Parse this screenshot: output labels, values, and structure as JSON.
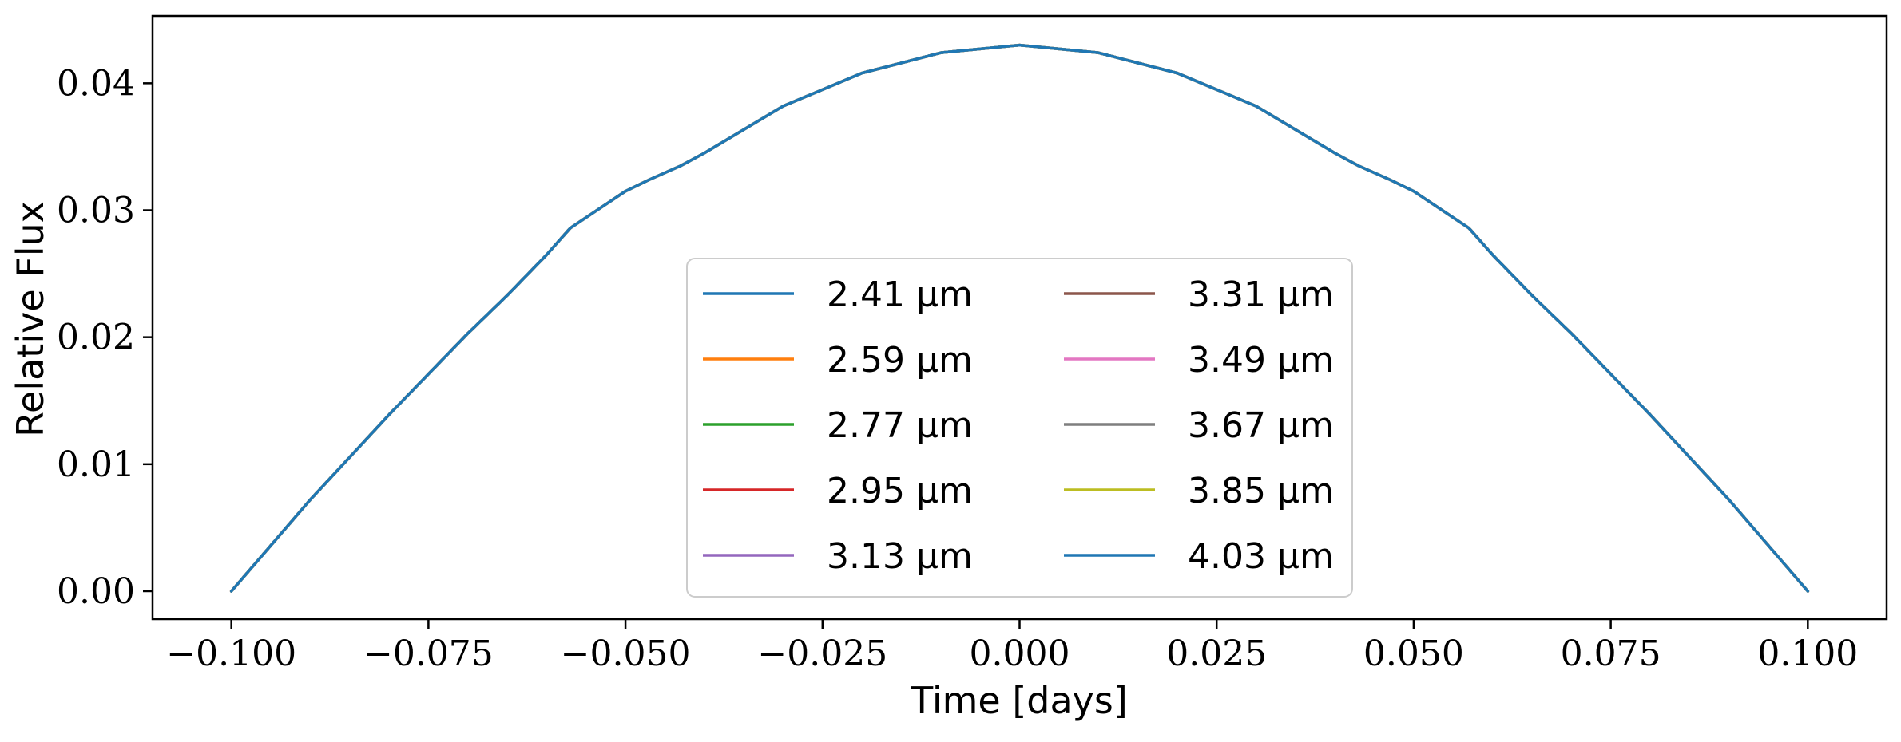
{
  "chart_data": {
    "type": "line",
    "title": "",
    "xlabel": "Time [days]",
    "ylabel": "Relative Flux",
    "xlim": [
      -0.11,
      0.11
    ],
    "ylim": [
      -0.0022,
      0.0453
    ],
    "xticks": [
      -0.1,
      -0.075,
      -0.05,
      -0.025,
      0.0,
      0.025,
      0.05,
      0.075,
      0.1
    ],
    "xtick_labels": [
      "−0.100",
      "−0.075",
      "−0.050",
      "−0.025",
      "0.000",
      "0.025",
      "0.050",
      "0.075",
      "0.100"
    ],
    "yticks": [
      0.0,
      0.01,
      0.02,
      0.03,
      0.04
    ],
    "ytick_labels": [
      "0.00",
      "0.01",
      "0.02",
      "0.03",
      "0.04"
    ],
    "grid": false,
    "legend_placement": "lower center",
    "legend_columns": 2,
    "x": [
      -0.1,
      -0.09,
      -0.08,
      -0.07,
      -0.065,
      -0.06,
      -0.057,
      -0.05,
      -0.047,
      -0.043,
      -0.04,
      -0.03,
      -0.02,
      -0.01,
      0.0,
      0.01,
      0.02,
      0.03,
      0.04,
      0.043,
      0.047,
      0.05,
      0.057,
      0.06,
      0.065,
      0.07,
      0.08,
      0.09,
      0.1
    ],
    "series": [
      {
        "name": "2.41 μm",
        "color": "#1f77b4",
        "values": [
          0.0,
          0.0072,
          0.0139,
          0.0203,
          0.0233,
          0.0265,
          0.0286,
          0.0315,
          0.0324,
          0.0335,
          0.0345,
          0.0382,
          0.0408,
          0.0424,
          0.043,
          0.0424,
          0.0408,
          0.0382,
          0.0345,
          0.0335,
          0.0324,
          0.0315,
          0.0286,
          0.0265,
          0.0233,
          0.0203,
          0.0139,
          0.0072,
          0.0
        ]
      },
      {
        "name": "2.59 μm",
        "color": "#ff7f0e",
        "values": [
          0.0,
          0.0072,
          0.0139,
          0.0203,
          0.0233,
          0.0265,
          0.0286,
          0.0315,
          0.0324,
          0.0335,
          0.0345,
          0.0382,
          0.0408,
          0.0424,
          0.043,
          0.0424,
          0.0408,
          0.0382,
          0.0345,
          0.0335,
          0.0324,
          0.0315,
          0.0286,
          0.0265,
          0.0233,
          0.0203,
          0.0139,
          0.0072,
          0.0
        ]
      },
      {
        "name": "2.77 μm",
        "color": "#2ca02c",
        "values": [
          0.0,
          0.0072,
          0.0139,
          0.0203,
          0.0233,
          0.0265,
          0.0286,
          0.0315,
          0.0324,
          0.0335,
          0.0345,
          0.0382,
          0.0408,
          0.0424,
          0.043,
          0.0424,
          0.0408,
          0.0382,
          0.0345,
          0.0335,
          0.0324,
          0.0315,
          0.0286,
          0.0265,
          0.0233,
          0.0203,
          0.0139,
          0.0072,
          0.0
        ]
      },
      {
        "name": "2.95 μm",
        "color": "#d62728",
        "values": [
          0.0,
          0.0072,
          0.0139,
          0.0203,
          0.0233,
          0.0265,
          0.0286,
          0.0315,
          0.0324,
          0.0335,
          0.0345,
          0.0382,
          0.0408,
          0.0424,
          0.043,
          0.0424,
          0.0408,
          0.0382,
          0.0345,
          0.0335,
          0.0324,
          0.0315,
          0.0286,
          0.0265,
          0.0233,
          0.0203,
          0.0139,
          0.0072,
          0.0
        ]
      },
      {
        "name": "3.13 μm",
        "color": "#9467bd",
        "values": [
          0.0,
          0.0072,
          0.0139,
          0.0203,
          0.0233,
          0.0265,
          0.0286,
          0.0315,
          0.0324,
          0.0335,
          0.0345,
          0.0382,
          0.0408,
          0.0424,
          0.043,
          0.0424,
          0.0408,
          0.0382,
          0.0345,
          0.0335,
          0.0324,
          0.0315,
          0.0286,
          0.0265,
          0.0233,
          0.0203,
          0.0139,
          0.0072,
          0.0
        ]
      },
      {
        "name": "3.31 μm",
        "color": "#8c564b",
        "values": [
          0.0,
          0.0072,
          0.0139,
          0.0203,
          0.0233,
          0.0265,
          0.0286,
          0.0315,
          0.0324,
          0.0335,
          0.0345,
          0.0382,
          0.0408,
          0.0424,
          0.043,
          0.0424,
          0.0408,
          0.0382,
          0.0345,
          0.0335,
          0.0324,
          0.0315,
          0.0286,
          0.0265,
          0.0233,
          0.0203,
          0.0139,
          0.0072,
          0.0
        ]
      },
      {
        "name": "3.49 μm",
        "color": "#e377c2",
        "values": [
          0.0,
          0.0072,
          0.0139,
          0.0203,
          0.0233,
          0.0265,
          0.0286,
          0.0315,
          0.0324,
          0.0335,
          0.0345,
          0.0382,
          0.0408,
          0.0424,
          0.043,
          0.0424,
          0.0408,
          0.0382,
          0.0345,
          0.0335,
          0.0324,
          0.0315,
          0.0286,
          0.0265,
          0.0233,
          0.0203,
          0.0139,
          0.0072,
          0.0
        ]
      },
      {
        "name": "3.67 μm",
        "color": "#7f7f7f",
        "values": [
          0.0,
          0.0072,
          0.0139,
          0.0203,
          0.0233,
          0.0265,
          0.0286,
          0.0315,
          0.0324,
          0.0335,
          0.0345,
          0.0382,
          0.0408,
          0.0424,
          0.043,
          0.0424,
          0.0408,
          0.0382,
          0.0345,
          0.0335,
          0.0324,
          0.0315,
          0.0286,
          0.0265,
          0.0233,
          0.0203,
          0.0139,
          0.0072,
          0.0
        ]
      },
      {
        "name": "3.85 μm",
        "color": "#bcbd22",
        "values": [
          0.0,
          0.0072,
          0.0139,
          0.0203,
          0.0233,
          0.0265,
          0.0286,
          0.0315,
          0.0324,
          0.0335,
          0.0345,
          0.0382,
          0.0408,
          0.0424,
          0.043,
          0.0424,
          0.0408,
          0.0382,
          0.0345,
          0.0335,
          0.0324,
          0.0315,
          0.0286,
          0.0265,
          0.0233,
          0.0203,
          0.0139,
          0.0072,
          0.0
        ]
      },
      {
        "name": "4.03 μm",
        "color": "#1f77b4",
        "values": [
          0.0,
          0.0072,
          0.0139,
          0.0203,
          0.0233,
          0.0265,
          0.0286,
          0.0315,
          0.0324,
          0.0335,
          0.0345,
          0.0382,
          0.0408,
          0.0424,
          0.043,
          0.0424,
          0.0408,
          0.0382,
          0.0345,
          0.0335,
          0.0324,
          0.0315,
          0.0286,
          0.0265,
          0.0233,
          0.0203,
          0.0139,
          0.0072,
          0.0
        ]
      }
    ]
  }
}
